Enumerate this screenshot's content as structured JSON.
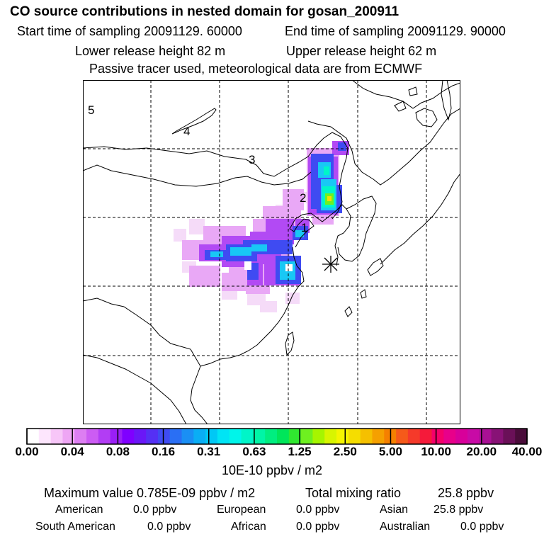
{
  "header": {
    "title": "CO  source contributions in nested domain for gosan_200911",
    "start_time": "Start time of sampling 20091129. 60000",
    "end_time": "End time of sampling 20091129. 90000",
    "lower_height": "Lower release height   82 m",
    "upper_height": "Upper release height   62 m",
    "tracer_note": "Passive tracer used, meteorological data are from ECMWF"
  },
  "map": {
    "region_labels": [
      "1",
      "2",
      "3",
      "4",
      "5"
    ],
    "receptor_symbol": "star-marker"
  },
  "colorbar": {
    "ticks": [
      "0.00",
      "0.04",
      "0.08",
      "0.16",
      "0.31",
      "0.63",
      "1.25",
      "2.50",
      "5.00",
      "10.00",
      "20.00",
      "40.00"
    ],
    "unit": "10E-10 ppbv / m2",
    "colors": [
      "#ffffff",
      "#fde6fd",
      "#f7c6f8",
      "#eea6f4",
      "#dd7ef2",
      "#cc5cf3",
      "#b23df4",
      "#9a1ff6",
      "#7f00ff",
      "#6a17f7",
      "#5530f4",
      "#3f4bf2",
      "#2a6ff4",
      "#1a8ff4",
      "#0aaef5",
      "#00c8f5",
      "#00e4f5",
      "#00f5ea",
      "#00f5c8",
      "#00f5a6",
      "#00ee80",
      "#00e65a",
      "#30e830",
      "#6ef020",
      "#a6f500",
      "#d8f500",
      "#f5f500",
      "#f5dd00",
      "#f5c000",
      "#f5a000",
      "#f58000",
      "#f55a1a",
      "#f53a2a",
      "#f51a3a",
      "#f5006a",
      "#e8008a",
      "#d8009a",
      "#c80aa6",
      "#a81094",
      "#881276",
      "#6a1058",
      "#4a0c3a"
    ]
  },
  "summary": {
    "max_label": "Maximum value  0.785E-09 ppbv / m2",
    "total_label": "Total mixing ratio",
    "total_value": "25.8 ppbv",
    "contributions": [
      {
        "name": "American",
        "value": "0.0 ppbv"
      },
      {
        "name": "European",
        "value": "0.0 ppbv"
      },
      {
        "name": "Asian",
        "value": "25.8 ppbv"
      },
      {
        "name": "South American",
        "value": "0.0 ppbv"
      },
      {
        "name": "African",
        "value": "0.0 ppbv"
      },
      {
        "name": "Australian",
        "value": "0.0 ppbv"
      }
    ]
  }
}
